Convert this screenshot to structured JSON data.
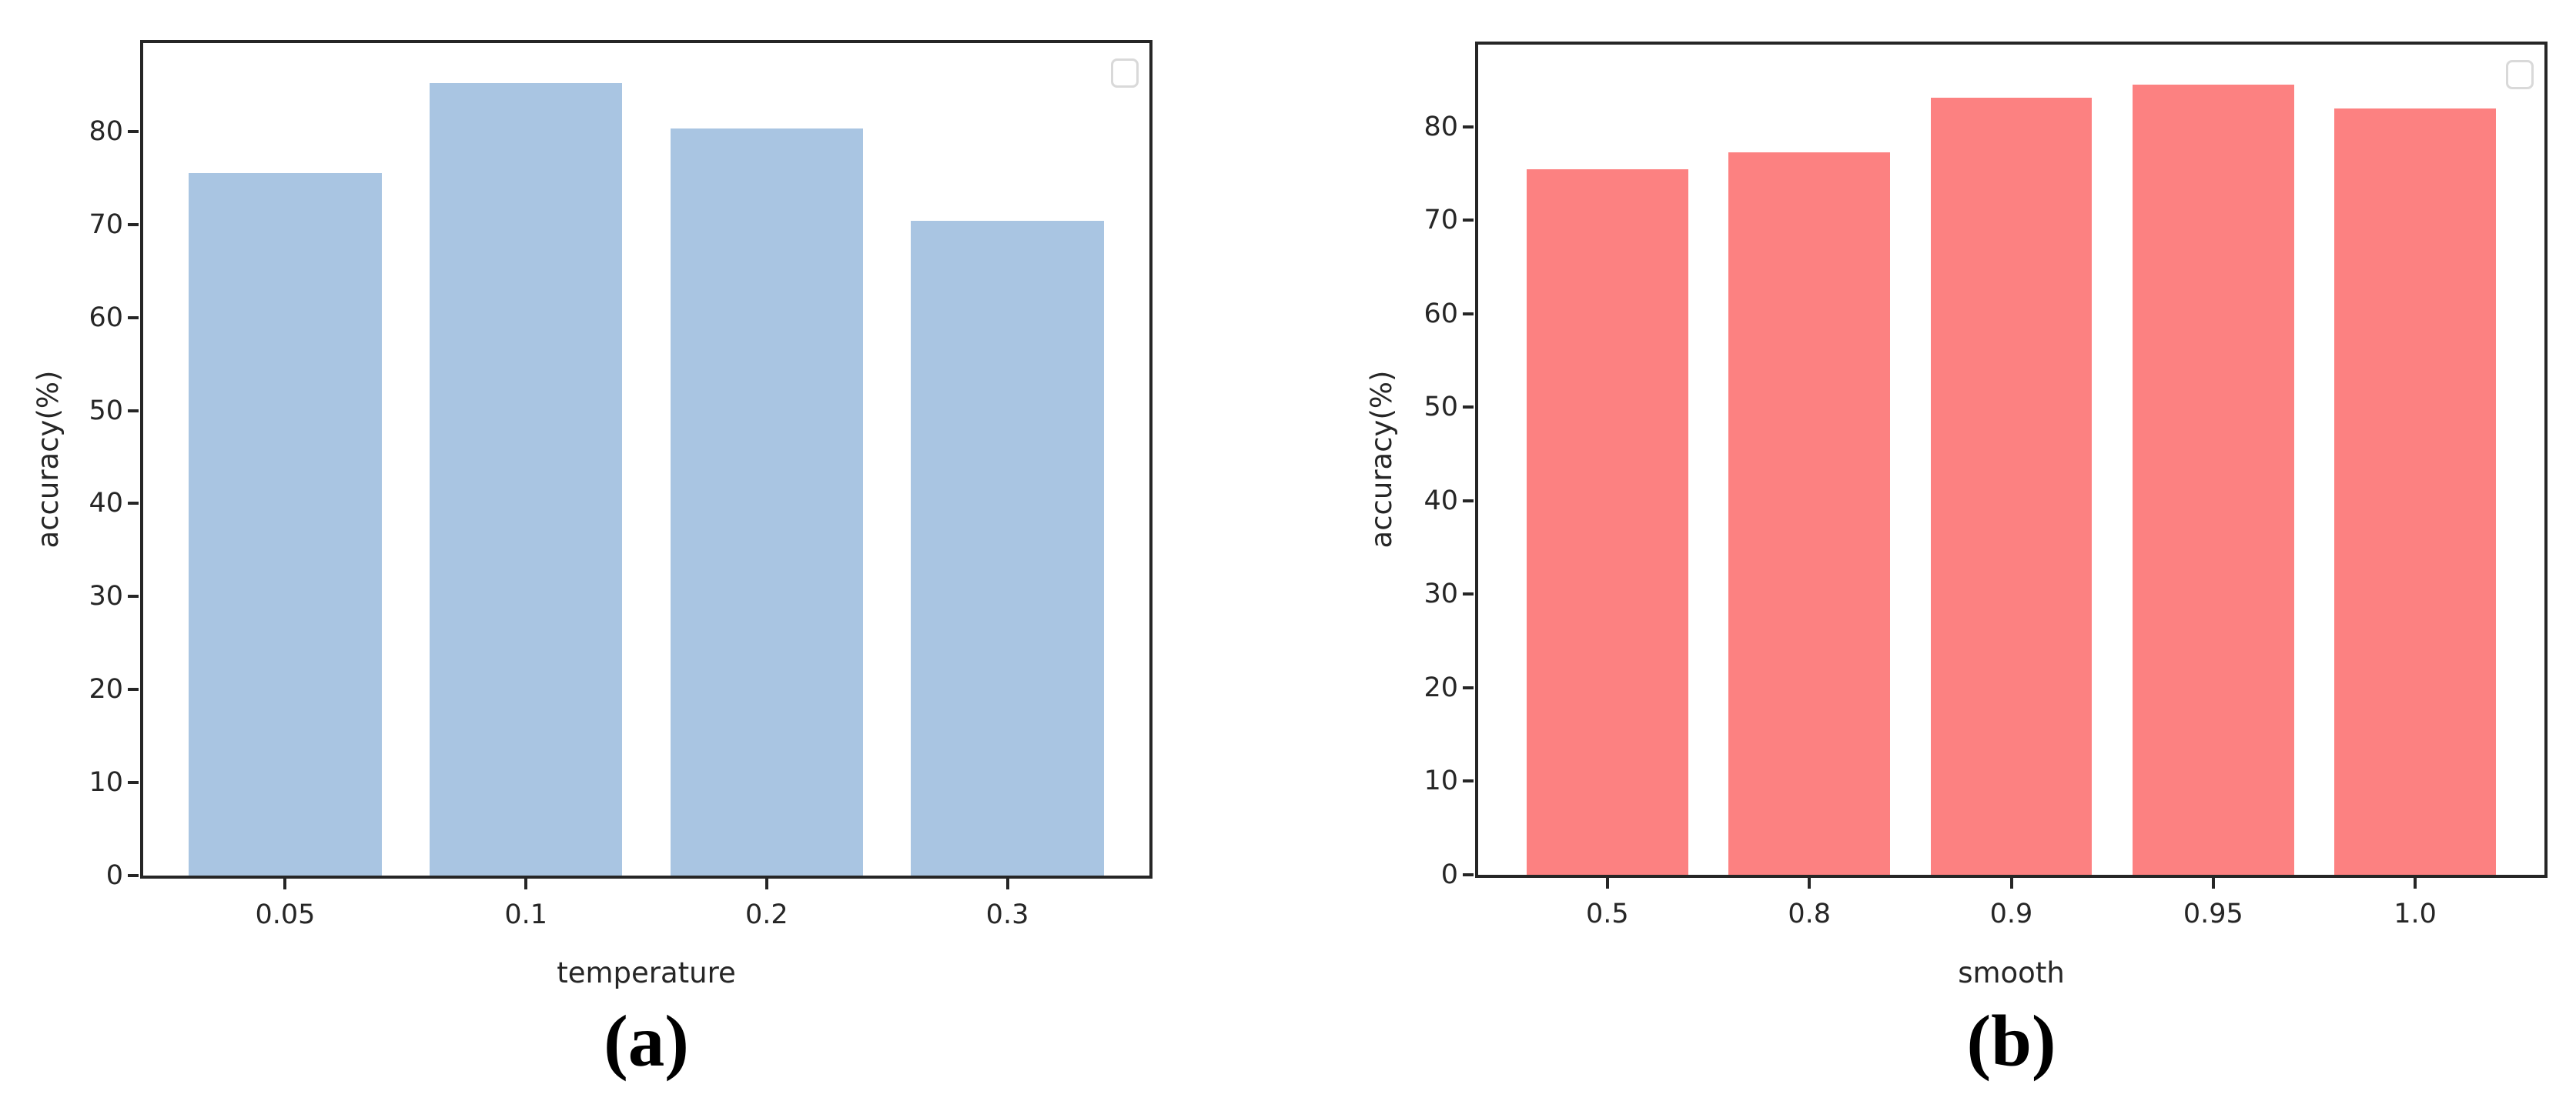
{
  "colors": {
    "background": "#ffffff",
    "spine": "#262626",
    "tick_label": "#262626",
    "legend_border": "#d9d9d9",
    "bar_blue": "#a9c5e2",
    "bar_salmon": "#fc8181"
  },
  "chart_data": [
    {
      "type": "bar",
      "panel_caption": "(a)",
      "categories": [
        "0.05",
        "0.1",
        "0.2",
        "0.3"
      ],
      "values": [
        75.5,
        85.2,
        80.3,
        70.4
      ],
      "title": "",
      "xlabel": "temperature",
      "ylabel": "accuracy(%)",
      "yticks": [
        0,
        10,
        20,
        30,
        40,
        50,
        60,
        70,
        80
      ],
      "ylim": [
        0,
        89.5
      ],
      "grid": false,
      "bar_color": "#a9c5e2",
      "legend": {
        "visible": true,
        "position": "upper-right",
        "entries": []
      }
    },
    {
      "type": "bar",
      "panel_caption": "(b)",
      "categories": [
        "0.5",
        "0.8",
        "0.9",
        "0.95",
        "1.0"
      ],
      "values": [
        75.5,
        77.3,
        83.1,
        84.5,
        82.0
      ],
      "title": "",
      "xlabel": "smooth",
      "ylabel": "accuracy(%)",
      "yticks": [
        0,
        10,
        20,
        30,
        40,
        50,
        60,
        70,
        80
      ],
      "ylim": [
        0,
        88.8
      ],
      "grid": false,
      "bar_color": "#fc8181",
      "legend": {
        "visible": true,
        "position": "upper-right",
        "entries": []
      }
    }
  ]
}
